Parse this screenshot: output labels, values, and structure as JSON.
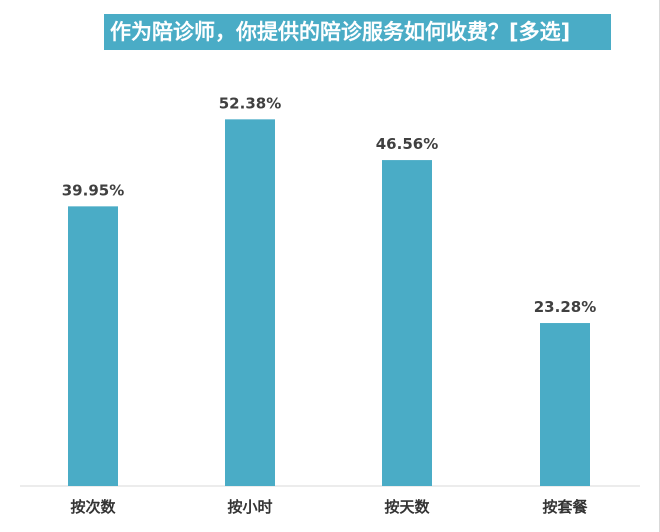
{
  "chart_data": {
    "type": "bar",
    "title": "作为陪诊师，你提供的陪诊服务如何收费？[多选]",
    "categories": [
      "按次数",
      "按小时",
      "按天数",
      "按套餐"
    ],
    "values": [
      39.95,
      52.38,
      46.56,
      23.28
    ],
    "value_labels": [
      "39.95%",
      "52.38%",
      "46.56%",
      "23.28%"
    ],
    "unit": "%",
    "ylim": [
      0,
      60
    ],
    "grid": false,
    "legend": "none",
    "bar_color": "#4aacc6",
    "title_bg_color": "#4aacc6"
  }
}
